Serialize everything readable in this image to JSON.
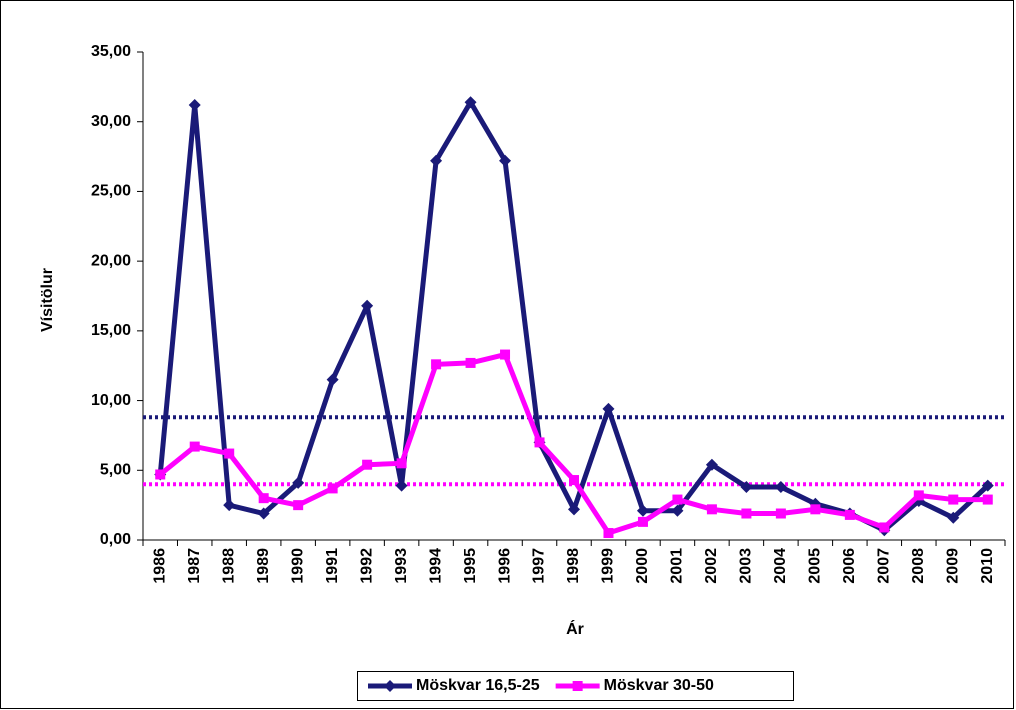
{
  "chart_data": {
    "type": "line",
    "y_label": "Vísitölur",
    "x_label": "Ár",
    "categories": [
      "1986",
      "1987",
      "1988",
      "1989",
      "1990",
      "1991",
      "1992",
      "1993",
      "1994",
      "1995",
      "1996",
      "1997",
      "1998",
      "1999",
      "2000",
      "2001",
      "2002",
      "2003",
      "2004",
      "2005",
      "2006",
      "2007",
      "2008",
      "2009",
      "2010"
    ],
    "series": [
      {
        "name": "Möskvar 16,5-25",
        "color": "#1a1a78",
        "marker": "diamond",
        "values": [
          4.7,
          31.2,
          2.5,
          1.9,
          4.1,
          11.5,
          16.8,
          3.9,
          27.2,
          31.4,
          27.2,
          7.0,
          2.2,
          9.4,
          2.1,
          2.1,
          5.4,
          3.8,
          3.8,
          2.6,
          1.9,
          0.7,
          2.8,
          1.6,
          3.9
        ]
      },
      {
        "name": "Möskvar 30-50",
        "color": "#ff00ff",
        "marker": "square",
        "values": [
          4.7,
          6.7,
          6.2,
          3.0,
          2.5,
          3.7,
          5.4,
          5.5,
          12.6,
          12.7,
          13.3,
          7.0,
          4.3,
          0.5,
          1.3,
          2.9,
          2.2,
          1.9,
          1.9,
          2.2,
          1.8,
          0.9,
          3.2,
          2.9,
          2.9
        ]
      }
    ],
    "reference_lines": [
      {
        "value": 8.8,
        "color": "#1a1a78"
      },
      {
        "value": 4.0,
        "color": "#ff00ff"
      }
    ],
    "ylim": [
      0,
      35
    ],
    "yticks": [
      {
        "value": 0,
        "label": "0,00"
      },
      {
        "value": 5,
        "label": "5,00"
      },
      {
        "value": 10,
        "label": "10,00"
      },
      {
        "value": 15,
        "label": "15,00"
      },
      {
        "value": 20,
        "label": "20,00"
      },
      {
        "value": 25,
        "label": "25,00"
      },
      {
        "value": 30,
        "label": "30,00"
      },
      {
        "value": 35,
        "label": "35,00"
      }
    ],
    "grid": false,
    "legend": "bottom"
  }
}
